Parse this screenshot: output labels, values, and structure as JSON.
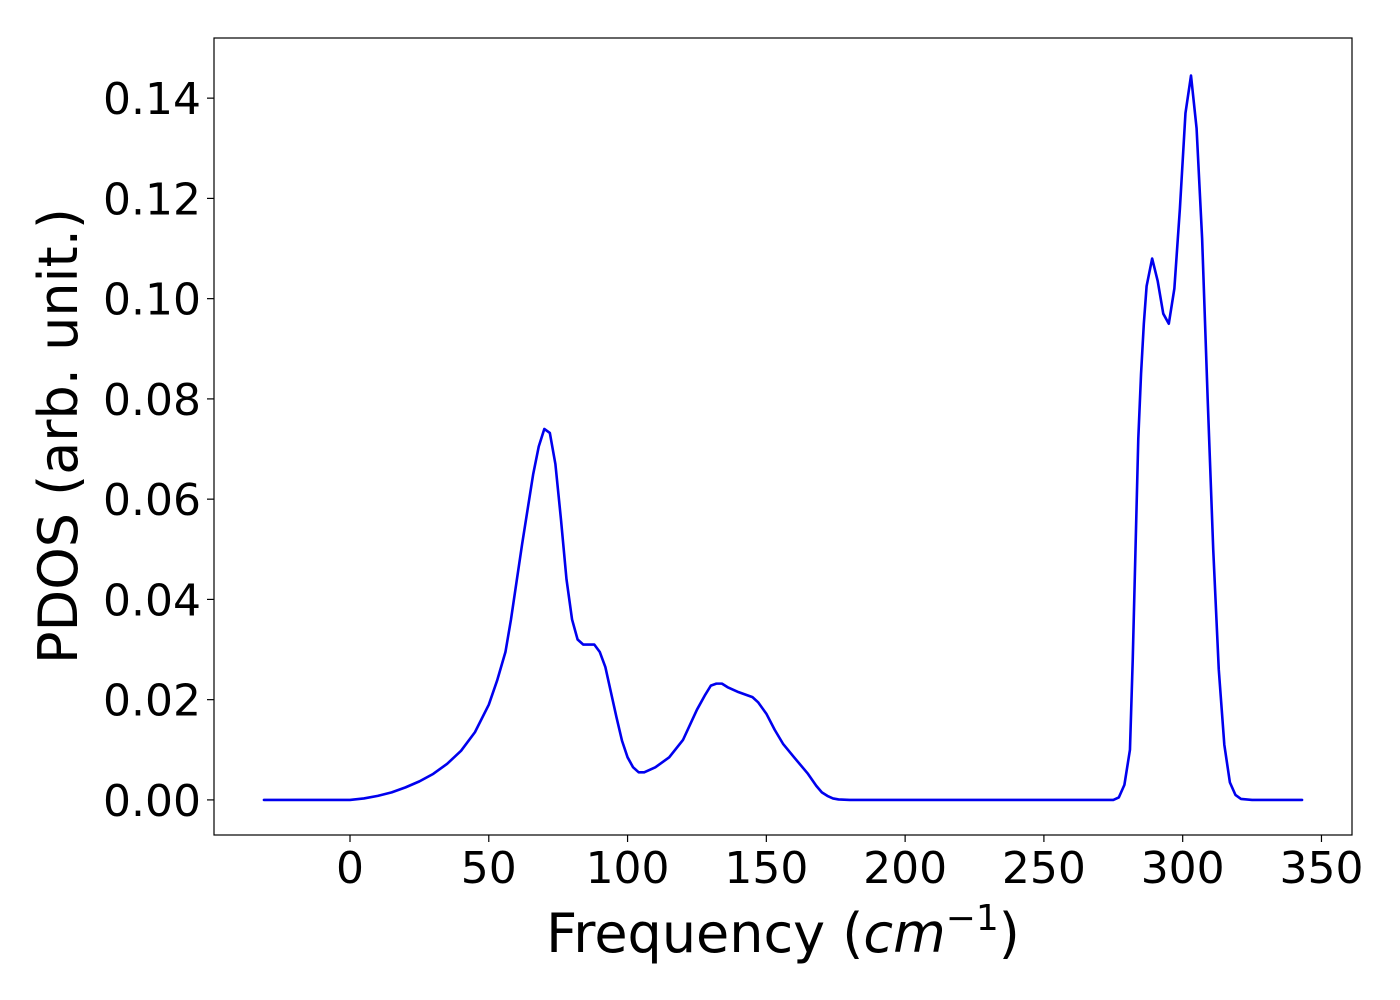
{
  "chart_data": {
    "type": "line",
    "xlabel": "Frequency (cm⁻¹)",
    "xlabel_parts": {
      "prefix": "Frequency (",
      "italic": "cm",
      "superscript": "−1",
      "suffix": ")"
    },
    "ylabel": "PDOS (arb. unit.)",
    "xlim": [
      -49,
      361
    ],
    "ylim": [
      -0.007,
      0.152
    ],
    "xticks": [
      0,
      50,
      100,
      150,
      200,
      250,
      300,
      350
    ],
    "xtick_labels": [
      "0",
      "50",
      "100",
      "150",
      "200",
      "250",
      "300",
      "350"
    ],
    "yticks": [
      0.0,
      0.02,
      0.04,
      0.06,
      0.08,
      0.1,
      0.12,
      0.14
    ],
    "ytick_labels": [
      "0.00",
      "0.02",
      "0.04",
      "0.06",
      "0.08",
      "0.10",
      "0.12",
      "0.14"
    ],
    "grid": false,
    "series": [
      {
        "color": "#0000ee",
        "x": [
          -31,
          0,
          5,
          10,
          15,
          20,
          25,
          30,
          35,
          40,
          45,
          50,
          53,
          56,
          58,
          60,
          62,
          64,
          66,
          68,
          70,
          72,
          74,
          76,
          78,
          80,
          82,
          84,
          86,
          88,
          90,
          92,
          94,
          96,
          98,
          100,
          102,
          104,
          106,
          110,
          115,
          120,
          125,
          128,
          130,
          132,
          134,
          136,
          140,
          145,
          147,
          150,
          153,
          156,
          160,
          165,
          168,
          170,
          172,
          174,
          176,
          180,
          200,
          250,
          275,
          277,
          279,
          281,
          282,
          283,
          284,
          285,
          286,
          287,
          289,
          291,
          293,
          295,
          297,
          299,
          301,
          303,
          305,
          307,
          309,
          311,
          313,
          315,
          317,
          319,
          321,
          325,
          343
        ],
        "y": [
          0.0,
          0.0,
          0.0003,
          0.0008,
          0.0015,
          0.0025,
          0.0037,
          0.0052,
          0.0072,
          0.0098,
          0.0135,
          0.019,
          0.0238,
          0.0295,
          0.036,
          0.0435,
          0.051,
          0.058,
          0.065,
          0.0705,
          0.074,
          0.0732,
          0.067,
          0.056,
          0.044,
          0.036,
          0.032,
          0.031,
          0.031,
          0.031,
          0.0295,
          0.0265,
          0.0215,
          0.0165,
          0.0118,
          0.0085,
          0.0065,
          0.0055,
          0.0055,
          0.0065,
          0.0085,
          0.012,
          0.018,
          0.021,
          0.0228,
          0.0232,
          0.0232,
          0.0225,
          0.0215,
          0.0205,
          0.0195,
          0.0172,
          0.014,
          0.0112,
          0.0085,
          0.0052,
          0.0028,
          0.0015,
          0.0008,
          0.0003,
          0.0001,
          0.0,
          0.0,
          0.0,
          0.0,
          0.0005,
          0.003,
          0.01,
          0.028,
          0.05,
          0.072,
          0.085,
          0.095,
          0.1025,
          0.108,
          0.1035,
          0.097,
          0.095,
          0.102,
          0.118,
          0.137,
          0.1445,
          0.134,
          0.112,
          0.08,
          0.05,
          0.026,
          0.011,
          0.0035,
          0.001,
          0.0002,
          0.0,
          0.0
        ]
      }
    ]
  }
}
